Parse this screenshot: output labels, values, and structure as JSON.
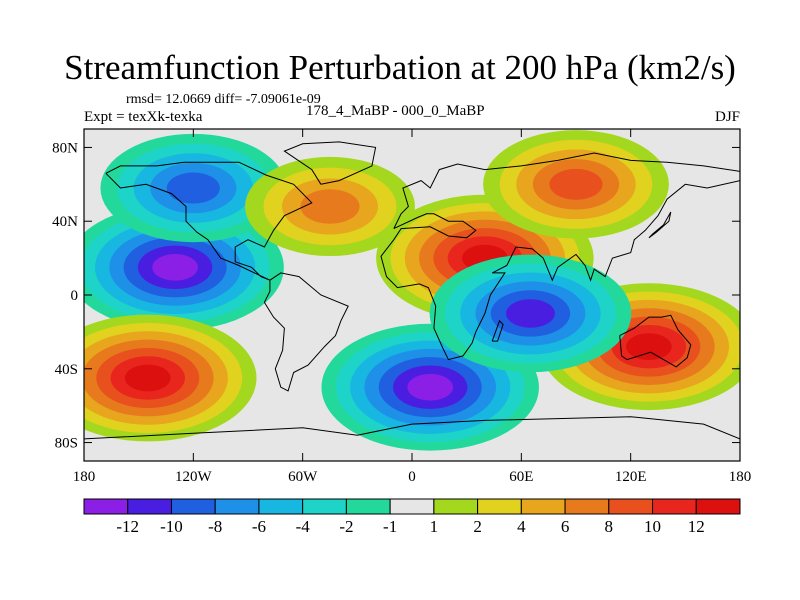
{
  "title": "Streamfunction Perturbation at 200 hPa (km2/s)",
  "stats_line": "rmsd= 12.0669 diff= -7.09061e-09",
  "experiment_line": "Expt = texXk-texka",
  "difference_label": "178_4_MaBP - 000_0_MaBP",
  "season": "DJF",
  "chart_data": {
    "type": "heatmap",
    "title": "Streamfunction Perturbation at 200 hPa (km2/s)",
    "xlim": [
      -180,
      180
    ],
    "ylim": [
      -90,
      90
    ],
    "x_ticks": [
      -180,
      -120,
      -60,
      0,
      60,
      120,
      180
    ],
    "x_tick_labels": [
      "180",
      "120W",
      "60W",
      "0",
      "60E",
      "120E",
      "180"
    ],
    "y_ticks": [
      80,
      40,
      0,
      -40,
      -80
    ],
    "y_tick_labels": [
      "80N",
      "40N",
      "0",
      "40S",
      "80S"
    ],
    "colorbar": {
      "labels": [
        "-12",
        "-10",
        "-8",
        "-6",
        "-4",
        "-2",
        "-1",
        "1",
        "2",
        "4",
        "6",
        "8",
        "10",
        "12"
      ],
      "colors": [
        "#8b1fe6",
        "#4a1ee0",
        "#1f5fe0",
        "#1e90e8",
        "#17b7e2",
        "#1ed4c8",
        "#22d99b",
        "#e6e6e6",
        "#a3d81e",
        "#e0d21e",
        "#e8a51e",
        "#e87a1e",
        "#e8501e",
        "#e8261e",
        "#dd1010"
      ]
    },
    "features": [
      {
        "name": "negative-pacific-tropical",
        "lon": -130,
        "lat": 15,
        "value": -12
      },
      {
        "name": "positive-africa-asia",
        "lon": 40,
        "lat": 20,
        "value": 12
      },
      {
        "name": "positive-south-pacific",
        "lon": -145,
        "lat": -45,
        "value": 12
      },
      {
        "name": "negative-south-atlantic-indian",
        "lon": 10,
        "lat": -50,
        "value": -12
      },
      {
        "name": "negative-north-pacific",
        "lon": -120,
        "lat": 58,
        "value": -8
      },
      {
        "name": "positive-north-asia",
        "lon": 90,
        "lat": 60,
        "value": 8
      },
      {
        "name": "positive-australia",
        "lon": 130,
        "lat": -28,
        "value": 12
      },
      {
        "name": "negative-indian-ocean",
        "lon": 65,
        "lat": -10,
        "value": -10
      },
      {
        "name": "positive-north-atlantic",
        "lon": -45,
        "lat": 48,
        "value": 6
      }
    ]
  }
}
